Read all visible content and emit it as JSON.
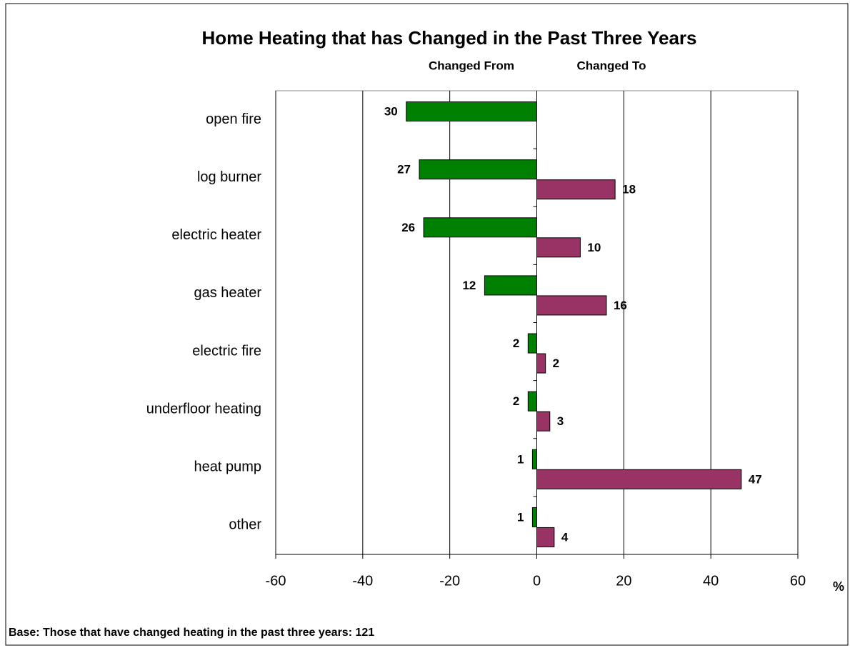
{
  "chart_data": {
    "type": "bar",
    "orientation": "horizontal",
    "title": "Home Heating that has Changed in the Past Three Years",
    "x_label": "%",
    "footnote": "Base: Those that have changed heating in the past three years: 121",
    "categories": [
      "open fire",
      "log burner",
      "electric heater",
      "gas heater",
      "electric fire",
      "underfloor heating",
      "heat pump",
      "other"
    ],
    "series": [
      {
        "name": "Changed From",
        "color": "#008000",
        "values": [
          -30,
          -27,
          -26,
          -12,
          -2,
          -2,
          -1,
          -1
        ],
        "value_labels": [
          "30",
          "27",
          "26",
          "12",
          "2",
          "2",
          "1",
          "1"
        ]
      },
      {
        "name": "Changed To",
        "color": "#993366",
        "values": [
          null,
          18,
          10,
          16,
          2,
          3,
          47,
          4
        ],
        "value_labels": [
          null,
          "18",
          "10",
          "16",
          "2",
          "3",
          "47",
          "4"
        ]
      }
    ],
    "xlim": [
      -60,
      60
    ],
    "xticks": [
      -60,
      -40,
      -20,
      0,
      20,
      40,
      60
    ],
    "grid": true
  }
}
